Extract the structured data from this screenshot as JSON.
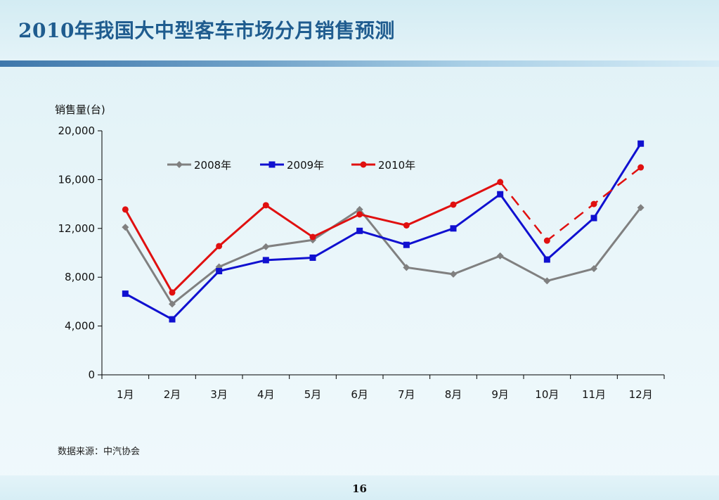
{
  "page": {
    "title": "2010年我国大中型客车市场分月销售预测",
    "source": "数据来源：中汽协会",
    "page_number": "16"
  },
  "chart_data": {
    "type": "line",
    "ylabel": "销售量(台)",
    "ylim": [
      0,
      20000
    ],
    "yticks": [
      0,
      4000,
      8000,
      12000,
      16000,
      20000
    ],
    "ytick_labels": [
      "0",
      "4,000",
      "8,000",
      "12,000",
      "16,000",
      "20,000"
    ],
    "categories": [
      "1月",
      "2月",
      "3月",
      "4月",
      "5月",
      "6月",
      "7月",
      "8月",
      "9月",
      "10月",
      "11月",
      "12月"
    ],
    "legend_position": "top-center",
    "grid": false,
    "series": [
      {
        "name": "2008年",
        "color": "#808080",
        "marker": "diamond",
        "values": [
          12100,
          5800,
          8850,
          10500,
          11050,
          13550,
          8800,
          8250,
          9750,
          7700,
          8700,
          13700
        ]
      },
      {
        "name": "2009年",
        "color": "#1010d0",
        "marker": "square",
        "values": [
          6650,
          4550,
          8500,
          9400,
          9600,
          11800,
          10650,
          12000,
          14800,
          9450,
          12850,
          18950
        ]
      },
      {
        "name": "2010年",
        "color": "#e01010",
        "marker": "circle",
        "values": [
          13550,
          6750,
          10550,
          13900,
          11300,
          13150,
          12250,
          13950,
          15800,
          11000,
          14000,
          17000
        ],
        "dashed_from_index": 8
      }
    ]
  }
}
